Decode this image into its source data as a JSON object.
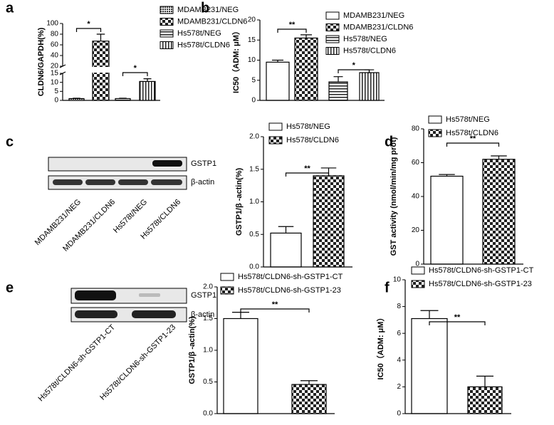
{
  "blots": [
    {
      "bands": [
        "GSTP1",
        "β-actin"
      ],
      "lanes": [
        "MDAMB231/NEG",
        "MDAMB231/CLDN6",
        "Hs578t/NEG",
        "Hs578t/CLDN6"
      ]
    },
    {
      "bands": [
        "GSTP1",
        "β-actin"
      ],
      "lanes": [
        "Hs578t/CLDN6-sh-GSTP1-CT",
        "Hs578t/CLDN6-sh-GSTP1-23"
      ]
    }
  ],
  "chart_data": [
    {
      "type": "bar",
      "panel": "a",
      "ylabel": "CLDN6/GAPDH(%)",
      "categories": [
        "MDAMB231/NEG",
        "MDAMB231/CLDN6",
        "Hs578t/NEG",
        "Hs578t/CLDN6"
      ],
      "values": [
        1,
        67,
        1,
        10.5
      ],
      "errors": [
        0.2,
        13,
        0.2,
        1.5
      ],
      "patterns": [
        "dots",
        "checker",
        "hlines",
        "vlines"
      ],
      "ylim": [
        0,
        100
      ],
      "ybreak": [
        15,
        20
      ],
      "yticks": [
        0,
        5,
        10,
        15,
        20,
        40,
        60,
        80,
        100
      ],
      "annotations": [
        "*",
        "*"
      ]
    },
    {
      "type": "bar",
      "panel": "b",
      "ylabel": "IC50（ADM: μM）",
      "categories": [
        "MDAMB231/NEG",
        "MDAMB231/CLDN6",
        "Hs578t/NEG",
        "Hs578t/CLDN6"
      ],
      "values": [
        9.5,
        15.5,
        4.6,
        6.9
      ],
      "errors": [
        0.5,
        0.8,
        1.3,
        0.7
      ],
      "patterns": [
        "white",
        "checker",
        "hlines",
        "vlines"
      ],
      "ylim": [
        0,
        20
      ],
      "yticks": [
        0,
        5,
        10,
        15,
        20
      ],
      "annotations": [
        "**",
        "*"
      ]
    },
    {
      "type": "bar",
      "panel": "c",
      "ylabel": "GSTP1/β -actin(%)",
      "categories": [
        "Hs578t/NEG",
        "Hs578t/CLDN6"
      ],
      "values": [
        0.52,
        1.4
      ],
      "errors": [
        0.1,
        0.12
      ],
      "patterns": [
        "white",
        "checker"
      ],
      "ylim": [
        0,
        2
      ],
      "yticks": [
        {
          "value": 0,
          "label": "0.0"
        },
        0.5,
        {
          "value": 1,
          "label": "1.0"
        },
        1.5,
        {
          "value": 2,
          "label": "2.0"
        }
      ],
      "annotations": [
        "**"
      ]
    },
    {
      "type": "bar",
      "panel": "d",
      "ylabel": "GST activity (nmol/min/mg prot)",
      "categories": [
        "Hs578t/NEG",
        "Hs578t/CLDN6"
      ],
      "values": [
        52,
        62
      ],
      "errors": [
        1,
        2
      ],
      "patterns": [
        "white",
        "checker"
      ],
      "ylim": [
        0,
        80
      ],
      "yticks": [
        0,
        20,
        40,
        60,
        80
      ],
      "annotations": [
        "**"
      ]
    },
    {
      "type": "bar",
      "panel": "e",
      "ylabel": "GSTP1/β -actin(%)",
      "categories": [
        "Hs578t/CLDN6-sh-GSTP1-CT",
        "Hs578t/CLDN6-sh-GSTP1-23"
      ],
      "values": [
        1.5,
        0.46
      ],
      "errors": [
        0.1,
        0.06
      ],
      "patterns": [
        "white",
        "checker"
      ],
      "ylim": [
        0,
        2
      ],
      "yticks": [
        {
          "value": 0,
          "label": "0.0"
        },
        0.5,
        {
          "value": 1,
          "label": "1.0"
        },
        1.5,
        {
          "value": 2,
          "label": "2.0"
        }
      ],
      "annotations": [
        "**"
      ]
    },
    {
      "type": "bar",
      "panel": "f",
      "ylabel": "IC50（ADM: μM）",
      "categories": [
        "Hs578t/CLDN6-sh-GSTP1-CT",
        "Hs578t/CLDN6-sh-GSTP1-23"
      ],
      "values": [
        7.1,
        2.0
      ],
      "errors": [
        0.6,
        0.8
      ],
      "patterns": [
        "white",
        "checker"
      ],
      "ylim": [
        0,
        10
      ],
      "yticks": [
        0,
        2,
        4,
        6,
        8,
        10
      ],
      "annotations": [
        "**"
      ]
    }
  ]
}
